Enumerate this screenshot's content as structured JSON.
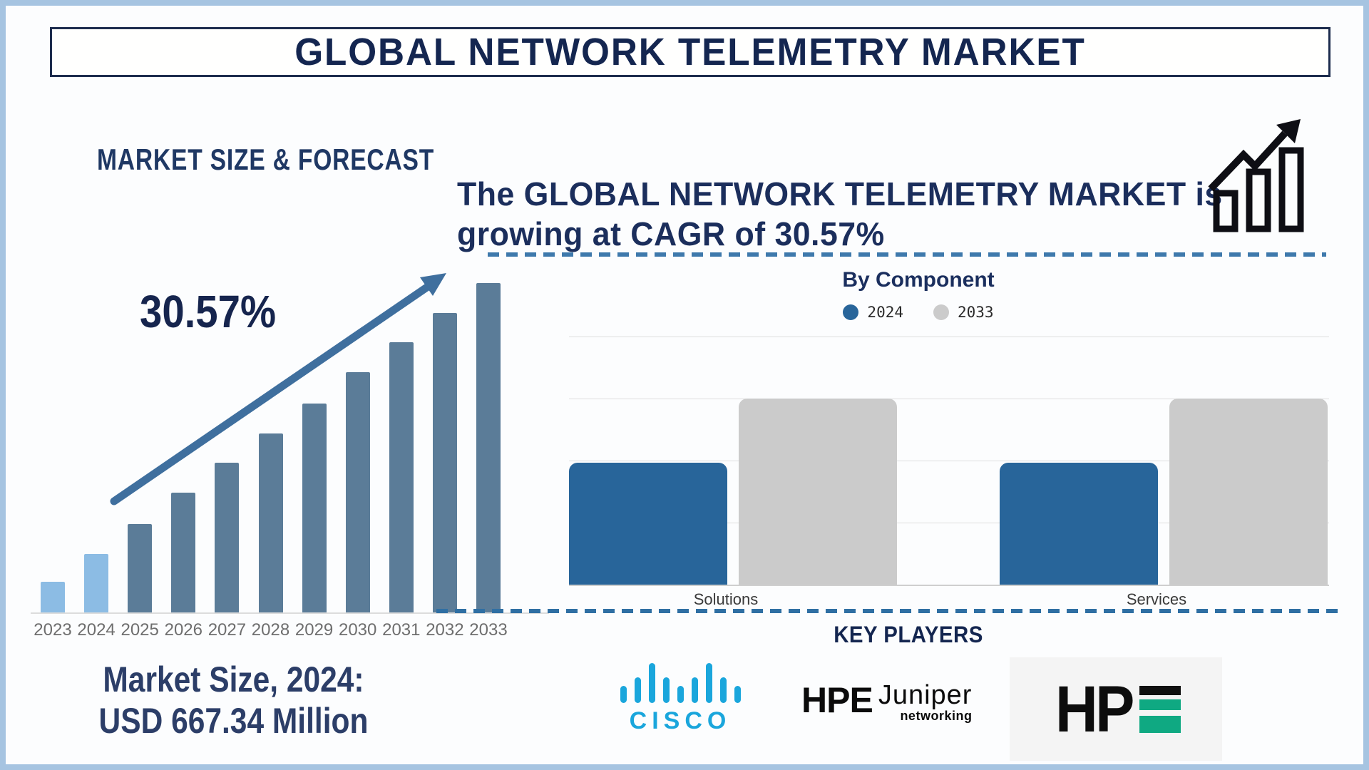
{
  "page": {
    "title": "GLOBAL NETWORK TELEMETRY MARKET"
  },
  "left_panel": {
    "section_title": "MARKET SIZE & FORECAST",
    "cagr_label": "30.57%",
    "market_size_line1": "Market Size, 2024:",
    "market_size_line2": "USD 667.34 Million"
  },
  "headline": {
    "line1": "The GLOBAL NETWORK TELEMETRY MARKET is",
    "line2": "growing at CAGR of 30.57%"
  },
  "by_component": {
    "title": "By Component"
  },
  "key_players": {
    "title": "KEY PLAYERS",
    "players": [
      {
        "name": "Cisco",
        "wordmark": "CISCO",
        "color": "#1aa6dc"
      },
      {
        "name": "HPE Juniper Networking",
        "parts": {
          "hpe": "HPE",
          "juniper": "Juniper",
          "networking": "networking"
        },
        "color": "#0b0b0b"
      },
      {
        "name": "HPE",
        "parts": {
          "hp": "HP"
        },
        "green": "#0fa982",
        "tile_bg": "#f4f4f4"
      }
    ]
  },
  "colors": {
    "navy_text": "#142650",
    "forecast_bar_actual": "#8cbce4",
    "forecast_bar_forecast": "#5b7c98",
    "trend_arrow": "#3f6f9e",
    "divider_dash": "#3a76aa",
    "component_2024": "#28659a",
    "component_2033": "#cbcbcb",
    "year_label": "#6e6e6e",
    "frame_border": "#a6c4e1"
  },
  "chart_data": [
    {
      "id": "market_size_forecast",
      "type": "bar",
      "title": "MARKET SIZE & FORECAST",
      "categories": [
        "2023",
        "2024",
        "2025",
        "2026",
        "2027",
        "2028",
        "2029",
        "2030",
        "2031",
        "2032",
        "2033"
      ],
      "values_relative": [
        0.095,
        0.18,
        0.27,
        0.365,
        0.455,
        0.545,
        0.635,
        0.73,
        0.82,
        0.91,
        1.0
      ],
      "values_note": "No y-axis shown; bar heights estimated as fraction of tallest (2033) bar; growth drawn approximately linear.",
      "bar_colors": [
        "#8cbce4",
        "#8cbce4",
        "#5b7c98",
        "#5b7c98",
        "#5b7c98",
        "#5b7c98",
        "#5b7c98",
        "#5b7c98",
        "#5b7c98",
        "#5b7c98",
        "#5b7c98"
      ],
      "annotation": "30.57%",
      "caption": "Market Size, 2024: USD 667.34 Million",
      "xlabel": "",
      "ylabel": "",
      "grid": false,
      "trend_arrow": true,
      "legend_position": "none"
    },
    {
      "id": "by_component",
      "type": "bar",
      "title": "By Component",
      "categories": [
        "Solutions",
        "Services"
      ],
      "series": [
        {
          "name": "2024",
          "color": "#28659a",
          "values_relative": [
            0.49,
            0.49
          ]
        },
        {
          "name": "2033",
          "color": "#cbcbcb",
          "values_relative": [
            0.75,
            0.75
          ]
        }
      ],
      "values_note": "No y-axis labels shown; heights estimated as fraction of plot height. 2033 bars reach the 2nd gridline from top in both categories.",
      "xlabel": "",
      "ylabel": "",
      "grid": true,
      "gridline_count": 5,
      "legend_position": "top"
    }
  ]
}
